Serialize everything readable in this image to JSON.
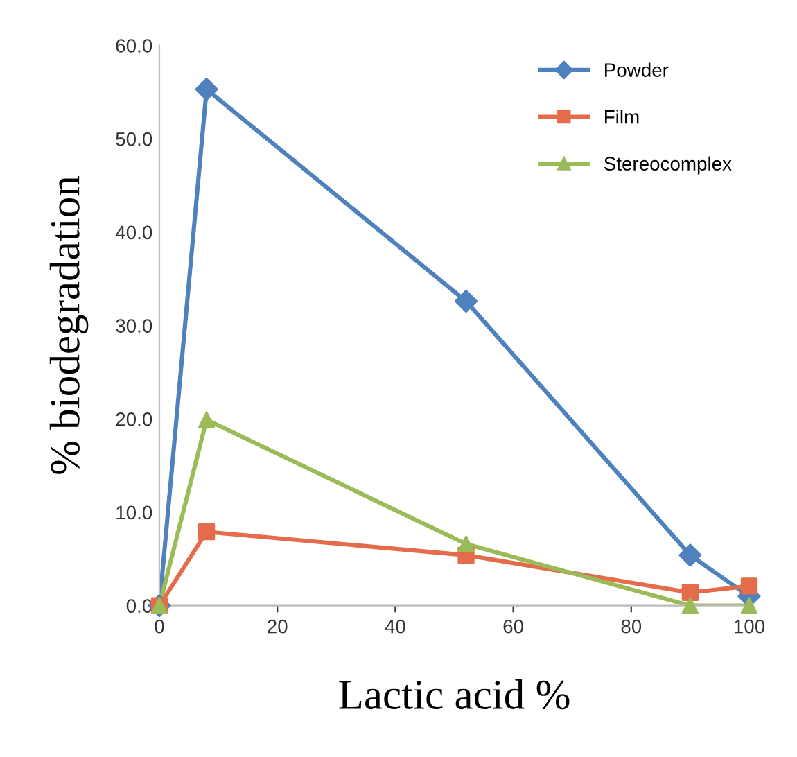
{
  "chart_data": {
    "type": "line",
    "xlabel": "Lactic acid %",
    "ylabel": "% biodegradation",
    "x": [
      0,
      8,
      52,
      90,
      100
    ],
    "series": [
      {
        "name": "Powder",
        "color": "#4f81bd",
        "marker": "diamond",
        "values": [
          0,
          55.3,
          32.6,
          5.4,
          1.0
        ]
      },
      {
        "name": "Film",
        "color": "#e46c4a",
        "marker": "square",
        "values": [
          0,
          7.9,
          5.4,
          1.4,
          2.1
        ]
      },
      {
        "name": "Stereocomplex",
        "color": "#9bbb59",
        "marker": "triangle",
        "values": [
          0,
          19.9,
          6.6,
          0,
          0
        ]
      }
    ],
    "xlim": [
      0,
      100
    ],
    "ylim": [
      0,
      60
    ],
    "xticks": [
      0,
      20,
      40,
      60,
      80,
      100
    ],
    "yticks": [
      {
        "value": 0,
        "label": "0.0"
      },
      {
        "value": 10,
        "label": "10.0"
      },
      {
        "value": 20,
        "label": "20.0"
      },
      {
        "value": 30,
        "label": "30.0"
      },
      {
        "value": 40,
        "label": "40.0"
      },
      {
        "value": 50,
        "label": "50.0"
      },
      {
        "value": 60,
        "label": "60.0"
      }
    ],
    "grid": false,
    "legend": "top right",
    "line_style": "solid"
  }
}
